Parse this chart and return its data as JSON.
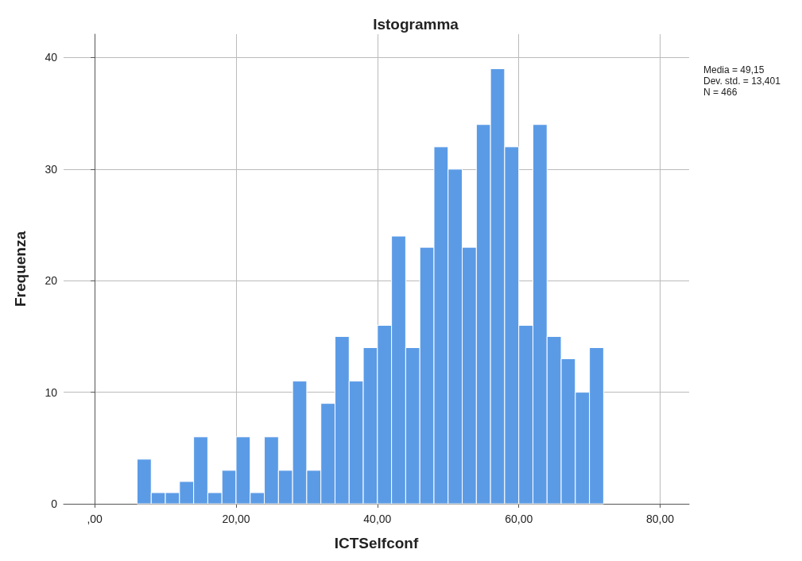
{
  "chart_data": {
    "type": "histogram",
    "title": "Istogramma",
    "xlabel": "ICTSelfconf",
    "ylabel": "Frequenza",
    "bins": [
      6,
      8,
      10,
      12,
      14,
      16,
      18,
      20,
      22,
      24,
      26,
      28,
      30,
      32,
      34,
      36,
      38,
      40,
      42,
      44,
      46,
      48,
      50,
      52,
      54,
      56,
      58,
      60,
      62,
      64,
      66,
      68,
      70,
      72
    ],
    "values": [
      4,
      1,
      1,
      2,
      6,
      1,
      3,
      6,
      1,
      6,
      3,
      11,
      3,
      9,
      15,
      11,
      14,
      16,
      24,
      14,
      23,
      32,
      30,
      23,
      34,
      39,
      32,
      16,
      34,
      15,
      13,
      10,
      14
    ],
    "color": "#5b9be6",
    "xlim": [
      -4.4,
      84.1
    ],
    "xticks": [
      {
        "value": 0,
        "label": ",00"
      },
      {
        "value": 20,
        "label": "20,00"
      },
      {
        "value": 40,
        "label": "40,00"
      },
      {
        "value": 60,
        "label": "60,00"
      },
      {
        "value": 80,
        "label": "80,00"
      }
    ],
    "ylim": [
      0,
      42.1
    ],
    "yticks": [
      0,
      10,
      20,
      30,
      40
    ],
    "grid": true,
    "annotations": [
      "Media = 49,15",
      "Dev. std. = 13,401",
      "N = 466"
    ]
  }
}
